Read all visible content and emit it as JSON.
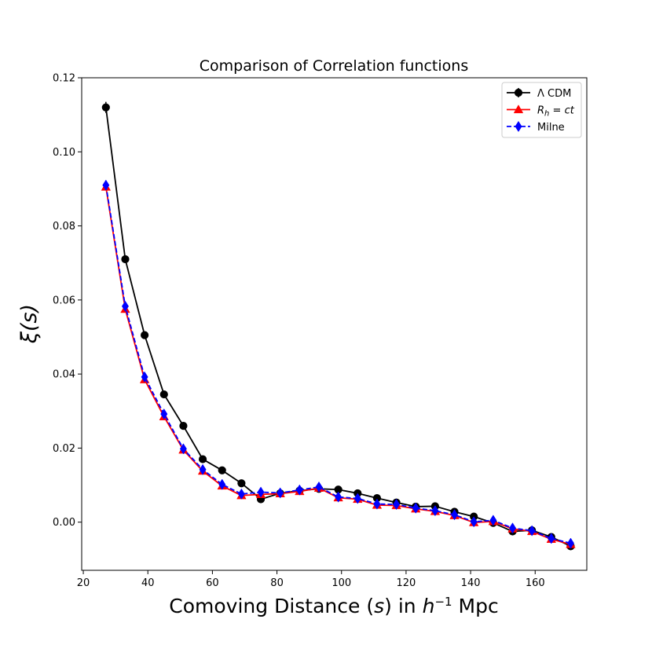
{
  "chart_data": {
    "type": "line",
    "title": "Comparison of Correlation functions",
    "xlabel": "Comoving Distance (s) in h⁻¹ Mpc",
    "ylabel": "ξ(s)",
    "xlim": [
      19.5,
      176
    ],
    "ylim": [
      -0.013,
      0.12
    ],
    "xticks": [
      20,
      40,
      60,
      80,
      100,
      120,
      140,
      160
    ],
    "yticks": [
      0.0,
      0.02,
      0.04,
      0.06,
      0.08,
      0.1,
      0.12
    ],
    "xtick_labels": [
      "20",
      "40",
      "60",
      "80",
      "100",
      "120",
      "140",
      "160"
    ],
    "ytick_labels": [
      "0.00",
      "0.02",
      "0.04",
      "0.06",
      "0.08",
      "0.10",
      "0.12"
    ],
    "grid": false,
    "legend_position": "top-right",
    "x": [
      27,
      33,
      39,
      45,
      51,
      57,
      63,
      69,
      75,
      81,
      87,
      93,
      99,
      105,
      111,
      117,
      123,
      129,
      135,
      141,
      147,
      153,
      159,
      165,
      171
    ],
    "series": [
      {
        "name": "Λ CDM",
        "color": "#000000",
        "marker": "circle",
        "linestyle": "solid",
        "values": [
          0.112,
          0.071,
          0.0505,
          0.0345,
          0.026,
          0.017,
          0.014,
          0.0105,
          0.0062,
          0.0078,
          0.0085,
          0.009,
          0.0088,
          0.0078,
          0.0065,
          0.0053,
          0.0042,
          0.0043,
          0.0028,
          0.0015,
          -0.0002,
          -0.0025,
          -0.0022,
          -0.004,
          -0.0065
        ],
        "errors": [
          0.0015,
          0.001,
          0.0008,
          0.0007,
          0.0006,
          0.0005,
          0.0005,
          0.0005,
          0.0005,
          0.0004,
          0.0004,
          0.0004,
          0.0004,
          0.0004,
          0.0004,
          0.0004,
          0.0004,
          0.0004,
          0.0004,
          0.0004,
          0.0004,
          0.0004,
          0.0004,
          0.0004,
          0.0004
        ]
      },
      {
        "name": "R_h = ct",
        "color": "#ff0000",
        "marker": "triangle",
        "linestyle": "solid",
        "values": [
          0.0905,
          0.0575,
          0.0385,
          0.0285,
          0.0195,
          0.0138,
          0.0098,
          0.0072,
          0.0075,
          0.0077,
          0.0083,
          0.0092,
          0.0066,
          0.0062,
          0.0046,
          0.0045,
          0.0036,
          0.0029,
          0.0018,
          -0.0001,
          0.0002,
          -0.0018,
          -0.0025,
          -0.0046,
          -0.006
        ]
      },
      {
        "name": "Milne",
        "color": "#0000ff",
        "marker": "diamond",
        "linestyle": "dashed",
        "values": [
          0.091,
          0.0583,
          0.0392,
          0.0292,
          0.0198,
          0.0142,
          0.0102,
          0.0076,
          0.0081,
          0.0079,
          0.0087,
          0.0095,
          0.0068,
          0.0064,
          0.0049,
          0.0048,
          0.0038,
          0.0031,
          0.002,
          0.0001,
          0.0005,
          -0.0016,
          -0.0023,
          -0.0044,
          -0.0057
        ]
      }
    ]
  }
}
